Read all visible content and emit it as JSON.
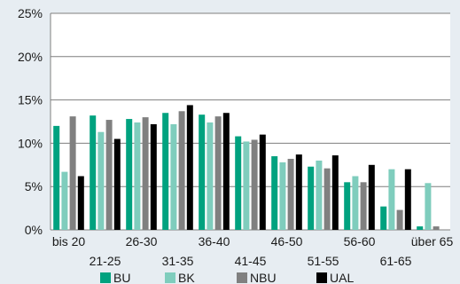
{
  "chart_data": {
    "type": "bar",
    "categories": [
      "bis 20",
      "21-25",
      "26-30",
      "31-35",
      "36-40",
      "41-45",
      "46-50",
      "51-55",
      "56-60",
      "61-65",
      "über 65"
    ],
    "series": [
      {
        "name": "BU",
        "color": "#00a27f",
        "values": [
          12.0,
          13.2,
          12.8,
          13.5,
          13.3,
          10.8,
          8.5,
          7.3,
          5.5,
          2.7,
          0.4
        ]
      },
      {
        "name": "BK",
        "color": "#7fcdbd",
        "values": [
          6.7,
          11.3,
          12.4,
          12.2,
          12.4,
          10.2,
          7.8,
          8.0,
          6.2,
          7.0,
          5.4
        ]
      },
      {
        "name": "NBU",
        "color": "#808080",
        "values": [
          13.1,
          12.7,
          13.0,
          13.7,
          13.1,
          10.4,
          8.2,
          7.1,
          5.5,
          2.3,
          0.4
        ]
      },
      {
        "name": "UAL",
        "color": "#000000",
        "values": [
          6.2,
          10.5,
          12.2,
          14.4,
          13.5,
          11.0,
          8.7,
          8.6,
          7.5,
          7.0,
          0.0
        ]
      }
    ],
    "y_ticks": [
      "0%",
      "5%",
      "10%",
      "15%",
      "20%",
      "25%"
    ],
    "ylim": [
      0,
      25
    ],
    "grid": true,
    "legend_position": "bottom",
    "title": "",
    "xlabel": "",
    "ylabel": ""
  }
}
